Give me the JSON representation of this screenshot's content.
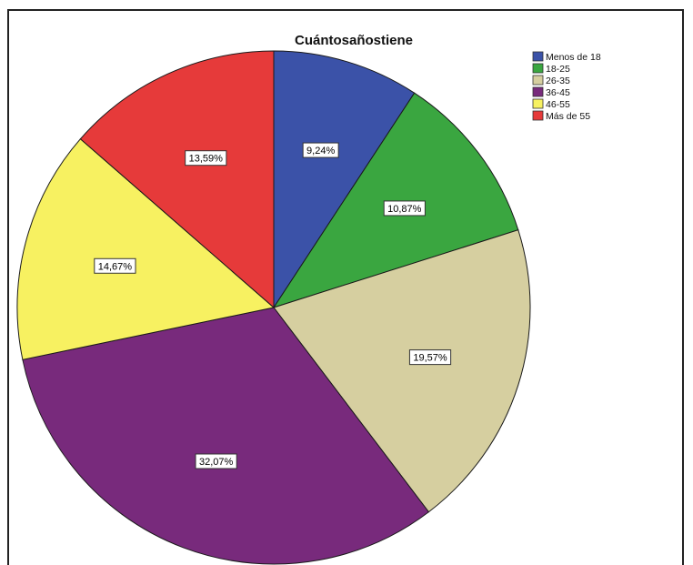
{
  "chart_data": {
    "type": "pie",
    "title": "Cuántosañostiene",
    "legend_position": "top-right",
    "categories": [
      "Menos de 18",
      "18-25",
      "26-35",
      "36-45",
      "46-55",
      "Más de 55"
    ],
    "values": [
      9.24,
      10.87,
      19.57,
      32.07,
      14.67,
      13.59
    ],
    "data_labels": [
      "9,24%",
      "10,87%",
      "19,57%",
      "32,07%",
      "14,67%",
      "13,59%"
    ],
    "colors": [
      "#3b52a8",
      "#3aa640",
      "#d6cfa0",
      "#782a7c",
      "#f7f161",
      "#e63a3a"
    ],
    "start_angle": "12 o'clock",
    "direction": "clockwise"
  }
}
